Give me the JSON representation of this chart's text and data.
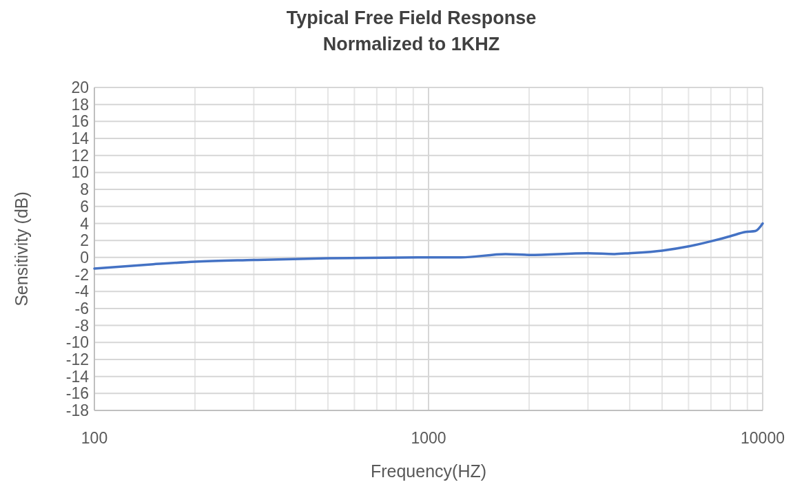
{
  "chart_data": {
    "type": "line",
    "title": "Typical Free Field Response\nNormalized to 1KHZ",
    "xlabel": "Frequency(HZ)",
    "ylabel": "Sensitivity (dB)",
    "log": "x",
    "grid": true,
    "xlim": [
      100,
      10000
    ],
    "xticks": [
      100,
      1000,
      10000
    ],
    "ylim": [
      -18,
      20
    ],
    "yticks": [
      20,
      18,
      16,
      14,
      12,
      10,
      8,
      6,
      4,
      2,
      0,
      -2,
      -4,
      -6,
      -8,
      -10,
      -12,
      -14,
      -16,
      -18
    ],
    "series": [
      {
        "color": "#4472c4",
        "x": [
          100,
          150,
          200,
          300,
          500,
          1000,
          1250,
          1700,
          2000,
          3000,
          3600,
          4000,
          5000,
          6000,
          7000,
          7500,
          8000,
          8900,
          9500,
          10000
        ],
        "values": [
          -1.3,
          -0.8,
          -0.5,
          -0.3,
          -0.1,
          0,
          0,
          0.4,
          0.3,
          0.5,
          0.4,
          0.5,
          0.8,
          1.3,
          1.9,
          2.2,
          2.5,
          3.0,
          3.1,
          4.0
        ]
      }
    ]
  }
}
